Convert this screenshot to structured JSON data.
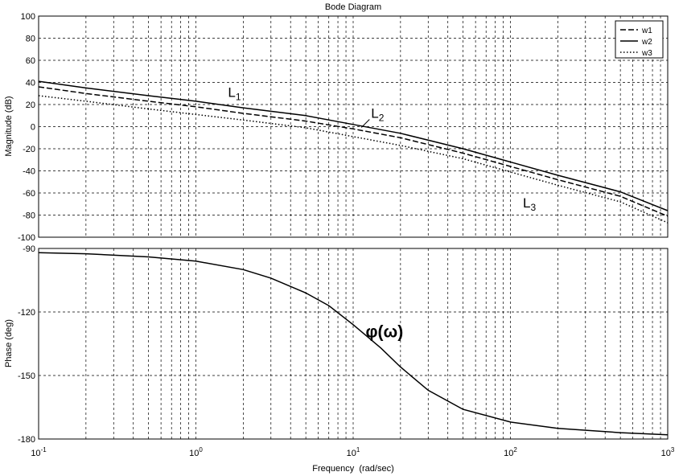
{
  "chart_data": [
    {
      "type": "line",
      "title": "Bode Diagram",
      "ylabel": "Magnitude (dB)",
      "xscale": "log",
      "xlim": [
        0.1,
        1000
      ],
      "ylim": [
        -100,
        100
      ],
      "y_ticks": [
        100,
        80,
        60,
        40,
        20,
        0,
        -20,
        -40,
        -60,
        -80,
        -100
      ],
      "grid": true,
      "legend": {
        "placement": "top-right",
        "entries": [
          "w1",
          "w2",
          "w3"
        ]
      },
      "series": [
        {
          "name": "w1",
          "style": "dashed",
          "x": [
            0.1,
            0.2,
            0.5,
            1,
            2,
            5,
            10,
            20,
            50,
            100,
            200,
            500,
            1000
          ],
          "y": [
            36,
            30,
            23,
            18,
            12,
            5,
            -2,
            -10,
            -24,
            -36,
            -48,
            -63,
            -81
          ]
        },
        {
          "name": "w2",
          "style": "solid",
          "x": [
            0.1,
            0.2,
            0.5,
            1,
            2,
            5,
            10,
            20,
            50,
            100,
            200,
            500,
            1000
          ],
          "y": [
            41,
            35,
            28,
            23,
            17,
            10,
            2,
            -6,
            -20,
            -32,
            -44,
            -59,
            -76
          ]
        },
        {
          "name": "w3",
          "style": "dotted",
          "x": [
            0.1,
            0.2,
            0.5,
            1,
            2,
            5,
            10,
            20,
            50,
            100,
            200,
            500,
            1000
          ],
          "y": [
            28,
            23,
            16,
            11,
            6,
            -1,
            -9,
            -17,
            -29,
            -41,
            -53,
            -68,
            -87
          ]
        }
      ],
      "annotations": [
        {
          "base": "L",
          "sub": "1",
          "x": 1.6,
          "y": 27
        },
        {
          "base": "L",
          "sub": "2",
          "x": 13,
          "y": 8
        },
        {
          "base": "L",
          "sub": "3",
          "x": 120,
          "y": -73
        }
      ]
    },
    {
      "type": "line",
      "ylabel": "Phase (deg)",
      "xlabel": "Frequency  (rad/sec)",
      "xscale": "log",
      "xlim": [
        0.1,
        1000
      ],
      "ylim": [
        -180,
        -90
      ],
      "y_ticks": [
        -90,
        -120,
        -150,
        -180
      ],
      "x_ticks": [
        {
          "base": "10",
          "exp": "-1",
          "value": 0.1
        },
        {
          "base": "10",
          "exp": "0",
          "value": 1
        },
        {
          "base": "10",
          "exp": "1",
          "value": 10
        },
        {
          "base": "10",
          "exp": "2",
          "value": 100
        },
        {
          "base": "10",
          "exp": "3",
          "value": 1000
        }
      ],
      "grid": true,
      "series": [
        {
          "style": "solid",
          "x": [
            0.1,
            0.2,
            0.5,
            1,
            2,
            3,
            5,
            7,
            10,
            15,
            20,
            30,
            50,
            100,
            200,
            500,
            1000
          ],
          "y": [
            -92,
            -92.5,
            -94,
            -96,
            -100,
            -104,
            -111,
            -117,
            -126,
            -137,
            -146,
            -157,
            -166,
            -172,
            -175,
            -177,
            -178
          ]
        }
      ],
      "annotations": [
        {
          "text": "φ(ω)",
          "x": 12,
          "y": -132
        }
      ]
    }
  ]
}
